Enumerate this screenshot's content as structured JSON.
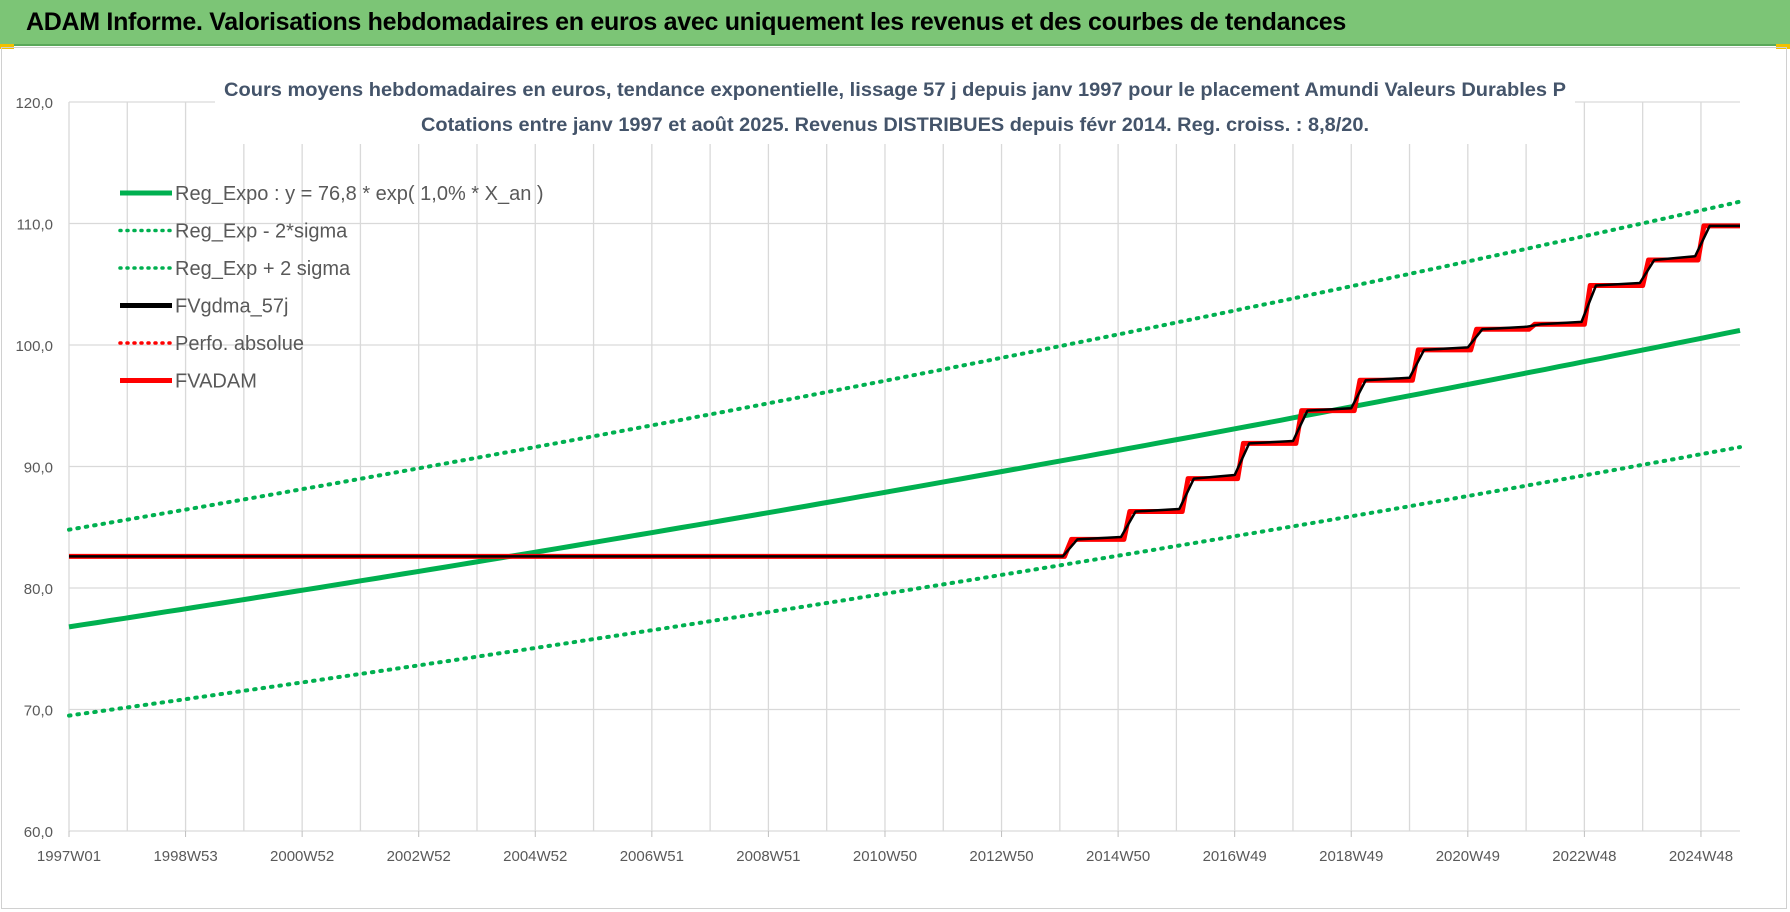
{
  "banner": {
    "title": "ADAM Informe. Valorisations hebdomadaires en euros avec uniquement les revenus et des courbes de tendances"
  },
  "colors": {
    "banner_bg": "#7cc576",
    "reg_green": "#00b050",
    "fv_black": "#000000",
    "adam_red": "#ff0000",
    "grid": "#d9d9d9",
    "title_text": "#44546a"
  },
  "chart_data": {
    "type": "line",
    "title_line1": "Cours moyens hebdomadaires en euros, tendance exponentielle, lissage 57 j depuis janv 1997 pour le placement Amundi Valeurs Durables P",
    "title_line2": "Cotations entre janv 1997 et août 2025.  Revenus DISTRIBUES depuis févr 2014.  Reg. croiss. : 8,8/20.",
    "ylim": [
      60,
      120
    ],
    "yticks": [
      "60,0",
      "70,0",
      "80,0",
      "90,0",
      "100,0",
      "110,0",
      "120,0"
    ],
    "yticks_values": [
      60,
      70,
      80,
      90,
      100,
      110,
      120
    ],
    "xrange_years": [
      1997.0,
      2025.67
    ],
    "xticks": [
      {
        "label": "1997W01",
        "year": 1997.0
      },
      {
        "label": "1998W53",
        "year": 1999.0
      },
      {
        "label": "2000W52",
        "year": 2001.0
      },
      {
        "label": "2002W52",
        "year": 2003.0
      },
      {
        "label": "2004W52",
        "year": 2005.0
      },
      {
        "label": "2006W51",
        "year": 2007.0
      },
      {
        "label": "2008W51",
        "year": 2009.0
      },
      {
        "label": "2010W50",
        "year": 2011.0
      },
      {
        "label": "2012W50",
        "year": 2013.0
      },
      {
        "label": "2014W50",
        "year": 2015.0
      },
      {
        "label": "2016W49",
        "year": 2017.0
      },
      {
        "label": "2018W49",
        "year": 2019.0
      },
      {
        "label": "2020W49",
        "year": 2021.0
      },
      {
        "label": "2022W48",
        "year": 2023.0
      },
      {
        "label": "2024W48",
        "year": 2025.0
      }
    ],
    "grid": true,
    "legend_position": "top-left",
    "legend": [
      {
        "label": "Reg_Expo : y = 76,8 * exp( 1,0% *  X_an )",
        "style": "solid",
        "color": "#00b050"
      },
      {
        "label": "Reg_Exp - 2*sigma",
        "style": "dotted",
        "color": "#00b050"
      },
      {
        "label": "Reg_Exp + 2 sigma",
        "style": "dotted",
        "color": "#00b050"
      },
      {
        "label": "FVgdma_57j",
        "style": "solid",
        "color": "#000000"
      },
      {
        "label": "Perfo. absolue",
        "style": "dotted",
        "color": "#ff0000"
      },
      {
        "label": "FVADAM",
        "style": "solid",
        "color": "#ff0000"
      }
    ],
    "series": [
      {
        "name": "Reg_Expo : y = 76,8 * exp( 1,0% *  X_an )",
        "kind": "exponential",
        "x": [
          1997.0,
          2005.0,
          2015.0,
          2025.67
        ],
        "y": [
          76.8,
          82.9,
          91.4,
          101.2
        ]
      },
      {
        "name": "Reg_Exp - 2*sigma",
        "kind": "exponential",
        "x": [
          1997.0,
          2005.0,
          2015.0,
          2025.67
        ],
        "y": [
          69.5,
          75.1,
          82.9,
          91.6
        ]
      },
      {
        "name": "Reg_Exp + 2 sigma",
        "kind": "exponential",
        "x": [
          1997.0,
          2005.0,
          2015.0,
          2025.67
        ],
        "y": [
          84.8,
          91.6,
          101.1,
          111.8
        ]
      },
      {
        "name": "FVADAM",
        "kind": "step",
        "x": [
          1997.0,
          2014.08,
          2014.2,
          2015.1,
          2015.2,
          2016.1,
          2016.2,
          2017.05,
          2017.15,
          2018.05,
          2018.15,
          2019.05,
          2019.15,
          2020.05,
          2020.15,
          2021.05,
          2021.15,
          2022.05,
          2022.15,
          2023.0,
          2023.1,
          2024.0,
          2024.1,
          2024.95,
          2025.05,
          2025.67
        ],
        "y": [
          82.6,
          82.6,
          84.0,
          84.0,
          86.3,
          86.3,
          89.0,
          89.0,
          91.9,
          91.9,
          94.6,
          94.6,
          97.1,
          97.1,
          99.6,
          99.6,
          101.3,
          101.3,
          101.7,
          101.7,
          104.9,
          104.9,
          107.0,
          107.0,
          109.8,
          109.8
        ]
      },
      {
        "name": "FVgdma_57j",
        "kind": "smoothed",
        "x": [
          1997.0,
          2014.05,
          2014.3,
          2015.05,
          2015.3,
          2016.05,
          2016.3,
          2017.0,
          2017.25,
          2018.0,
          2018.25,
          2019.0,
          2019.25,
          2020.0,
          2020.25,
          2021.0,
          2021.25,
          2022.0,
          2022.25,
          2022.95,
          2023.2,
          2023.95,
          2024.2,
          2024.9,
          2025.15,
          2025.67
        ],
        "y": [
          82.6,
          82.6,
          84.0,
          84.2,
          86.3,
          86.5,
          89.0,
          89.3,
          91.9,
          92.1,
          94.6,
          94.8,
          97.1,
          97.3,
          99.6,
          99.8,
          101.3,
          101.5,
          101.7,
          101.9,
          104.9,
          105.1,
          107.0,
          107.3,
          109.8,
          109.8
        ]
      }
    ]
  }
}
